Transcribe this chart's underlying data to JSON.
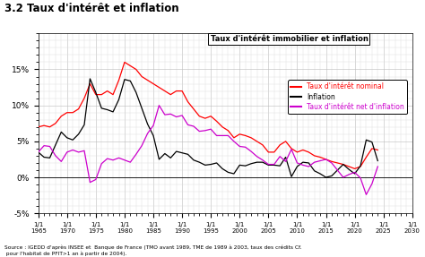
{
  "title": "3.2 Taux d'intérêt et inflation",
  "box_title": "Taux d'intérêt immobilier et inflation",
  "source_text": "Source : IGEDD d'après INSEE et  Banque de France (TMO avant 1989, TME de 1989 à 2003, taux des crédits Cf.\n pour l'habitat de PFIT>1 an à partir de 2004).",
  "ylim": [
    -5,
    20
  ],
  "yticks": [
    -5,
    0,
    5,
    10,
    15
  ],
  "ytick_labels": [
    "-5%",
    "0%",
    "5%",
    "10%",
    "15%"
  ],
  "xmin": 1965,
  "xmax": 2030,
  "legend_entries": [
    {
      "label": "Taux d'intérêt nominal",
      "color": "#ff0000"
    },
    {
      "label": "Inflation",
      "color": "#000000"
    },
    {
      "label": "Taux d'intérêt net d'inflation",
      "color": "#cc00cc"
    }
  ],
  "line_nominal": {
    "color": "#ff0000",
    "years": [
      1965,
      1966,
      1967,
      1968,
      1969,
      1970,
      1971,
      1972,
      1973,
      1974,
      1975,
      1976,
      1977,
      1978,
      1979,
      1980,
      1981,
      1982,
      1983,
      1984,
      1985,
      1986,
      1987,
      1988,
      1989,
      1990,
      1991,
      1992,
      1993,
      1994,
      1995,
      1996,
      1997,
      1998,
      1999,
      2000,
      2001,
      2002,
      2003,
      2004,
      2005,
      2006,
      2007,
      2008,
      2009,
      2010,
      2011,
      2012,
      2013,
      2014,
      2015,
      2016,
      2017,
      2018,
      2019,
      2020,
      2021,
      2022,
      2023,
      2024
    ],
    "values": [
      7.0,
      7.2,
      7.0,
      7.5,
      8.5,
      9.0,
      9.0,
      9.5,
      11.0,
      13.0,
      11.5,
      11.5,
      12.0,
      11.5,
      13.5,
      16.0,
      15.5,
      15.0,
      14.0,
      13.5,
      13.0,
      12.5,
      12.0,
      11.5,
      12.0,
      12.0,
      10.5,
      9.5,
      8.5,
      8.2,
      8.5,
      7.8,
      7.0,
      6.5,
      5.5,
      6.0,
      5.8,
      5.5,
      5.0,
      4.5,
      3.5,
      3.5,
      4.5,
      5.0,
      4.0,
      3.5,
      3.8,
      3.5,
      3.0,
      2.8,
      2.5,
      2.2,
      2.0,
      1.8,
      1.5,
      1.2,
      1.5,
      2.8,
      4.0,
      3.8
    ]
  },
  "line_inflation": {
    "color": "#000000",
    "years": [
      1965,
      1966,
      1967,
      1968,
      1969,
      1970,
      1971,
      1972,
      1973,
      1974,
      1975,
      1976,
      1977,
      1978,
      1979,
      1980,
      1981,
      1982,
      1983,
      1984,
      1985,
      1986,
      1987,
      1988,
      1989,
      1990,
      1991,
      1992,
      1993,
      1994,
      1995,
      1996,
      1997,
      1998,
      1999,
      2000,
      2001,
      2002,
      2003,
      2004,
      2005,
      2006,
      2007,
      2008,
      2009,
      2010,
      2011,
      2012,
      2013,
      2014,
      2015,
      2016,
      2017,
      2018,
      2019,
      2020,
      2021,
      2022,
      2023,
      2024
    ],
    "values": [
      3.5,
      2.8,
      2.7,
      4.5,
      6.3,
      5.5,
      5.2,
      6.0,
      7.3,
      13.7,
      11.8,
      9.6,
      9.4,
      9.1,
      10.8,
      13.6,
      13.4,
      11.8,
      9.6,
      7.4,
      5.8,
      2.5,
      3.3,
      2.7,
      3.6,
      3.4,
      3.2,
      2.4,
      2.1,
      1.7,
      1.8,
      2.0,
      1.2,
      0.7,
      0.5,
      1.7,
      1.6,
      1.9,
      2.1,
      2.1,
      1.7,
      1.7,
      1.6,
      2.8,
      0.1,
      1.5,
      2.1,
      2.0,
      0.9,
      0.5,
      0.0,
      0.2,
      1.0,
      1.8,
      1.1,
      0.5,
      1.6,
      5.2,
      4.9,
      2.3
    ]
  },
  "line_net": {
    "color": "#cc00cc",
    "years": [
      1965,
      1966,
      1967,
      1968,
      1969,
      1970,
      1971,
      1972,
      1973,
      1974,
      1975,
      1976,
      1977,
      1978,
      1979,
      1980,
      1981,
      1982,
      1983,
      1984,
      1985,
      1986,
      1987,
      1988,
      1989,
      1990,
      1991,
      1992,
      1993,
      1994,
      1995,
      1996,
      1997,
      1998,
      1999,
      2000,
      2001,
      2002,
      2003,
      2004,
      2005,
      2006,
      2007,
      2008,
      2009,
      2010,
      2011,
      2012,
      2013,
      2014,
      2015,
      2016,
      2017,
      2018,
      2019,
      2020,
      2021,
      2022,
      2023,
      2024
    ],
    "values": [
      3.5,
      4.4,
      4.3,
      3.0,
      2.2,
      3.5,
      3.8,
      3.5,
      3.7,
      -0.7,
      -0.3,
      1.9,
      2.6,
      2.4,
      2.7,
      2.4,
      2.1,
      3.2,
      4.4,
      6.1,
      7.2,
      10.0,
      8.7,
      8.8,
      8.4,
      8.6,
      7.3,
      7.1,
      6.4,
      6.5,
      6.7,
      5.8,
      5.8,
      5.8,
      5.0,
      4.3,
      4.2,
      3.6,
      2.9,
      2.4,
      1.8,
      1.8,
      2.9,
      2.2,
      3.9,
      2.0,
      1.7,
      1.5,
      2.1,
      2.3,
      2.5,
      2.0,
      1.0,
      0.0,
      0.4,
      0.7,
      -0.1,
      -2.4,
      -0.9,
      1.5
    ]
  },
  "bg_color": "#ffffff",
  "grid_color": "#cccccc",
  "title_fontsize": 8.5,
  "axis_fontsize": 6.5
}
